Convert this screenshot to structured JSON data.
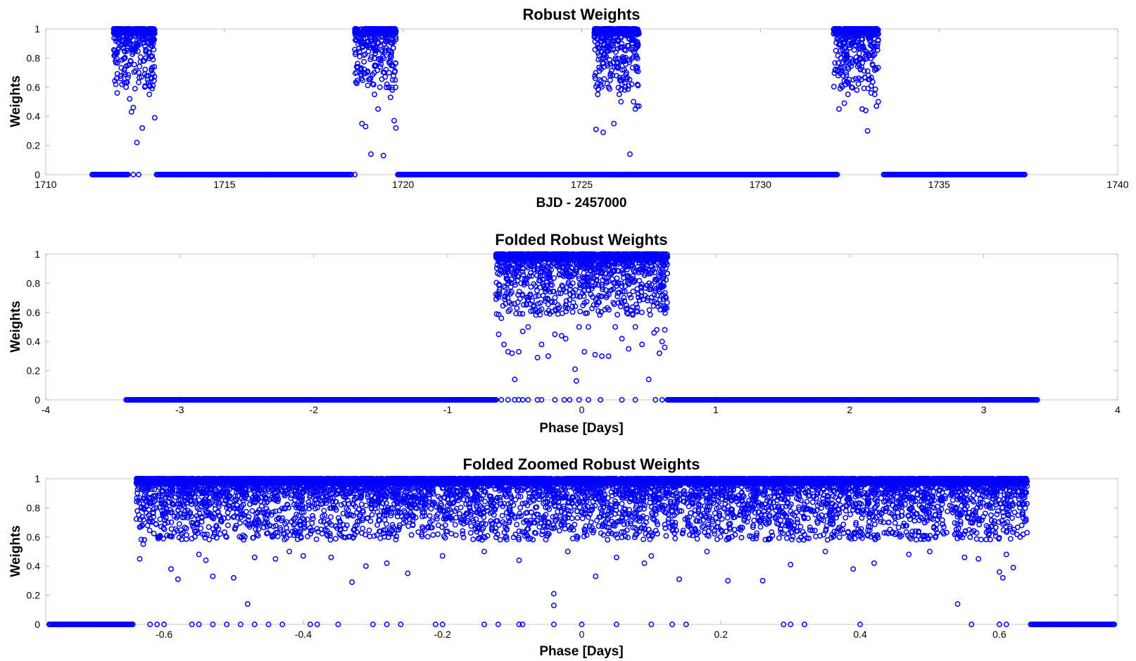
{
  "figure": {
    "marker_color": "#0000ff"
  },
  "chart_data": [
    {
      "type": "scatter",
      "title": "Robust Weights",
      "xlabel": "BJD - 2457000",
      "ylabel": "Weights",
      "xlim": [
        1710,
        1740
      ],
      "ylim": [
        0,
        1
      ],
      "xticks": [
        1710,
        1715,
        1720,
        1725,
        1730,
        1735,
        1740
      ],
      "yticks": [
        0,
        0.2,
        0.4,
        0.6,
        0.8,
        1
      ],
      "grid": false,
      "series": [
        {
          "marker": "open-circle",
          "color": "#0000ff",
          "x": [
            1712.0,
            1712.1,
            1712.25,
            1712.35,
            1712.45,
            1712.55,
            1712.7,
            1712.85,
            1713.0,
            1711.95,
            1712.2,
            1712.5,
            1712.8,
            1712.05,
            1712.6,
            1712.15,
            1712.9,
            1713.05,
            1712.4,
            1718.85,
            1718.95,
            1719.1,
            1719.2,
            1719.3,
            1719.45,
            1719.6,
            1719.75,
            1719.8,
            1719.0,
            1719.35,
            1719.5,
            1719.7,
            1718.9,
            1719.25,
            1719.55,
            1719.15,
            1719.65,
            1725.4,
            1725.5,
            1725.6,
            1725.75,
            1725.9,
            1726.05,
            1726.2,
            1726.35,
            1726.5,
            1726.55,
            1725.45,
            1725.8,
            1726.1,
            1726.4,
            1725.65,
            1726.25,
            1725.55,
            1726.45,
            1726.6,
            1725.7,
            1732.2,
            1732.35,
            1732.45,
            1732.55,
            1732.7,
            1732.85,
            1733.0,
            1733.1,
            1733.25,
            1733.3,
            1732.25,
            1732.6,
            1732.95,
            1733.2,
            1732.4,
            1733.15,
            1732.8,
            1732.5,
            1733.05
          ],
          "y": [
            0.56,
            0.66,
            0.6,
            0.52,
            0.46,
            0.22,
            0.32,
            0.65,
            0.61,
            0.78,
            0.72,
            0.59,
            0.8,
            0.87,
            0.7,
            0.92,
            0.55,
            0.39,
            0.43,
            0.35,
            0.33,
            0.14,
            0.55,
            0.45,
            0.13,
            0.6,
            0.37,
            0.32,
            0.7,
            0.6,
            0.67,
            0.75,
            0.82,
            0.85,
            0.62,
            0.9,
            0.53,
            0.31,
            0.65,
            0.29,
            0.6,
            0.35,
            0.55,
            0.63,
            0.14,
            0.45,
            0.47,
            0.55,
            0.68,
            0.5,
            0.62,
            0.8,
            0.7,
            0.84,
            0.5,
            0.47,
            0.88,
            0.45,
            0.49,
            0.55,
            0.6,
            0.58,
            0.45,
            0.3,
            0.56,
            0.47,
            0.5,
            0.8,
            0.65,
            0.44,
            0.55,
            0.7,
            0.75,
            0.72,
            0.87,
            0.82
          ],
          "x_bands": [
            [
              1711.9,
              1713.05
            ],
            [
              1718.65,
              1719.8
            ],
            [
              1725.35,
              1726.6
            ],
            [
              1732.05,
              1733.3
            ]
          ],
          "zero_bands": [
            [
              1711.3,
              1712.3
            ],
            [
              1713.1,
              1718.55
            ],
            [
              1719.85,
              1732.15
            ],
            [
              1733.45,
              1737.4
            ]
          ],
          "zero_x": [
            1712.45,
            1712.6,
            1718.65,
            1725.5,
            1725.95,
            1726.15,
            1726.3,
            1726.55
          ]
        }
      ]
    },
    {
      "type": "scatter",
      "title": "Folded Robust Weights",
      "xlabel": "Phase [Days]",
      "ylabel": "Weights",
      "xlim": [
        -4,
        4
      ],
      "ylim": [
        0,
        1
      ],
      "xticks": [
        -4,
        -3,
        -2,
        -1,
        0,
        1,
        2,
        3,
        4
      ],
      "yticks": [
        0,
        0.2,
        0.4,
        0.6,
        0.8,
        1
      ],
      "grid": false,
      "series": [
        {
          "marker": "open-circle",
          "color": "#0000ff",
          "x": [
            -0.62,
            -0.6,
            -0.58,
            -0.55,
            -0.52,
            -0.5,
            -0.47,
            -0.44,
            -0.4,
            -0.33,
            -0.3,
            -0.25,
            -0.2,
            -0.15,
            -0.12,
            -0.05,
            -0.04,
            -0.02,
            0.02,
            0.05,
            0.1,
            0.15,
            0.2,
            0.25,
            0.3,
            0.35,
            0.4,
            0.45,
            0.5,
            0.54,
            0.56,
            0.58,
            0.6,
            0.62,
            0.62
          ],
          "y": [
            0.45,
            0.56,
            0.38,
            0.33,
            0.32,
            0.14,
            0.33,
            0.47,
            0.5,
            0.29,
            0.38,
            0.3,
            0.45,
            0.44,
            0.42,
            0.21,
            0.13,
            0.5,
            0.33,
            0.5,
            0.31,
            0.3,
            0.3,
            0.5,
            0.42,
            0.35,
            0.5,
            0.38,
            0.14,
            0.46,
            0.48,
            0.32,
            0.4,
            0.36,
            0.48
          ],
          "x_bands": [
            [
              -0.64,
              0.64
            ]
          ],
          "zero_bands": [
            [
              -3.4,
              -0.64
            ],
            [
              0.64,
              3.4
            ]
          ],
          "zero_x": [
            -0.6,
            -0.55,
            -0.5,
            -0.47,
            -0.44,
            -0.4,
            -0.33,
            -0.3,
            -0.2,
            -0.13,
            -0.09,
            -0.02,
            0.05,
            0.14,
            0.3,
            0.4,
            0.55,
            0.6
          ]
        }
      ]
    },
    {
      "type": "scatter",
      "title": "Folded Zoomed Robust Weights",
      "xlabel": "Phase [Days]",
      "ylabel": "Weights",
      "xlim": [
        -0.77,
        0.77
      ],
      "ylim": [
        0,
        1
      ],
      "xticks": [
        -0.6,
        -0.4,
        -0.2,
        0,
        0.2,
        0.4,
        0.6
      ],
      "yticks": [
        0,
        0.2,
        0.4,
        0.6,
        0.8,
        1
      ],
      "grid": false,
      "series": [
        {
          "marker": "open-circle",
          "color": "#0000ff",
          "x": [
            -0.635,
            -0.63,
            -0.59,
            -0.58,
            -0.55,
            -0.54,
            -0.53,
            -0.5,
            -0.48,
            -0.47,
            -0.44,
            -0.42,
            -0.4,
            -0.36,
            -0.33,
            -0.31,
            -0.28,
            -0.25,
            -0.2,
            -0.14,
            -0.09,
            -0.04,
            -0.04,
            -0.02,
            0.02,
            0.05,
            0.09,
            0.1,
            0.14,
            0.18,
            0.21,
            0.26,
            0.3,
            0.35,
            0.39,
            0.42,
            0.47,
            0.5,
            0.54,
            0.55,
            0.57,
            0.6,
            0.605,
            0.61,
            0.62,
            0.63
          ],
          "y": [
            0.45,
            0.55,
            0.38,
            0.31,
            0.48,
            0.44,
            0.33,
            0.32,
            0.14,
            0.46,
            0.45,
            0.5,
            0.47,
            0.46,
            0.29,
            0.4,
            0.42,
            0.35,
            0.47,
            0.5,
            0.44,
            0.21,
            0.13,
            0.5,
            0.33,
            0.46,
            0.42,
            0.47,
            0.31,
            0.5,
            0.3,
            0.3,
            0.41,
            0.5,
            0.38,
            0.42,
            0.48,
            0.5,
            0.14,
            0.46,
            0.45,
            0.36,
            0.32,
            0.48,
            0.39,
            0.6
          ],
          "x_bands": [
            [
              -0.64,
              0.64
            ]
          ],
          "zero_bands": [
            [
              -0.765,
              -0.645
            ],
            [
              0.645,
              0.765
            ]
          ],
          "zero_x": [
            -0.62,
            -0.61,
            -0.6,
            -0.56,
            -0.55,
            -0.53,
            -0.51,
            -0.49,
            -0.47,
            -0.45,
            -0.43,
            -0.39,
            -0.38,
            -0.35,
            -0.3,
            -0.28,
            -0.26,
            -0.21,
            -0.2,
            -0.14,
            -0.12,
            -0.09,
            -0.085,
            -0.04,
            0,
            0.05,
            0.1,
            0.13,
            0.15,
            0.29,
            0.3,
            0.32,
            0.4,
            0.56,
            0.6,
            0.61
          ]
        }
      ]
    }
  ]
}
